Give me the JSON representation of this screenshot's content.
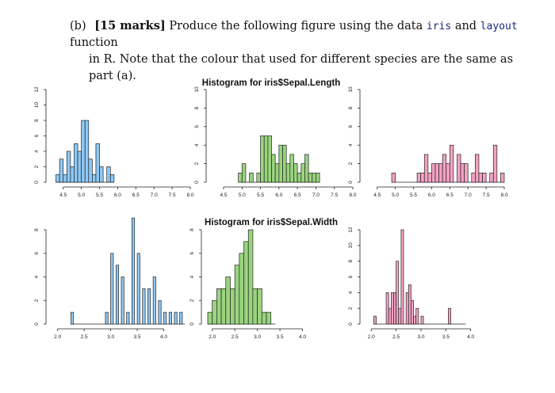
{
  "question": {
    "number": "(b)",
    "marks": "[15 marks]",
    "line1_text": "Produce the following figure using the data",
    "code_iris": "iris",
    "and_text": "and",
    "code_layout": "layout",
    "function_text": "function",
    "line2_text": "in R. Note that the colour that used for different species are the same as part (a)."
  },
  "colors": {
    "setosa": "#8ec9f5",
    "versicolor": "#9ad47f",
    "virginica": "#f4a3c2",
    "stroke": "#222222"
  },
  "chart_data": [
    {
      "type": "bar",
      "title": "",
      "species": "setosa",
      "bin_width": 0.1,
      "bins_start": [
        4.3,
        4.4,
        4.5,
        4.6,
        4.7,
        4.8,
        4.9,
        5.0,
        5.1,
        5.2,
        5.3,
        5.4,
        5.5,
        5.6,
        5.7,
        5.8
      ],
      "counts": [
        1,
        3,
        1,
        4,
        2,
        5,
        4,
        8,
        8,
        3,
        1,
        5,
        2,
        0,
        2,
        1
      ],
      "xlim": [
        4.2,
        8.0
      ],
      "ylim": [
        0,
        12
      ],
      "xticks": [
        "4.5",
        "5.0",
        "5.5",
        "6.0",
        "6.5",
        "7.0",
        "7.5",
        "8.0"
      ],
      "yticks": [
        "0",
        "2",
        "4",
        "6",
        "8",
        "10",
        "12"
      ]
    },
    {
      "type": "bar",
      "title": "Histogram for iris$Sepal.Length",
      "species": "versicolor",
      "bin_width": 0.1,
      "bins_start": [
        4.9,
        5.0,
        5.1,
        5.2,
        5.3,
        5.4,
        5.5,
        5.6,
        5.7,
        5.8,
        5.9,
        6.0,
        6.1,
        6.2,
        6.3,
        6.4,
        6.5,
        6.6,
        6.7,
        6.8,
        6.9,
        7.0
      ],
      "counts": [
        1,
        2,
        0,
        1,
        0,
        1,
        5,
        5,
        5,
        3,
        2,
        4,
        4,
        2,
        3,
        2,
        1,
        2,
        3,
        1,
        1,
        1
      ],
      "xlim": [
        4.2,
        8.0
      ],
      "ylim": [
        0,
        10
      ],
      "xticks": [
        "4.5",
        "5.0",
        "5.5",
        "6.0",
        "6.5",
        "7.0",
        "7.5",
        "8.0"
      ],
      "yticks": [
        "0",
        "2",
        "4",
        "6",
        "8",
        "10"
      ]
    },
    {
      "type": "bar",
      "title": "",
      "species": "virginica",
      "bin_width": 0.1,
      "bins_start": [
        4.9,
        5.0,
        5.1,
        5.2,
        5.3,
        5.4,
        5.5,
        5.6,
        5.7,
        5.8,
        5.9,
        6.0,
        6.1,
        6.2,
        6.3,
        6.4,
        6.5,
        6.6,
        6.7,
        6.8,
        6.9,
        7.0,
        7.1,
        7.2,
        7.3,
        7.4,
        7.5,
        7.6,
        7.7,
        7.8,
        7.9
      ],
      "counts": [
        1,
        0,
        0,
        0,
        0,
        0,
        0,
        1,
        1,
        3,
        1,
        2,
        2,
        2,
        3,
        2,
        4,
        0,
        3,
        2,
        2,
        0,
        1,
        3,
        1,
        1,
        0,
        1,
        4,
        0,
        1
      ],
      "xlim": [
        4.2,
        8.0
      ],
      "ylim": [
        0,
        10
      ],
      "xticks": [
        "4.5",
        "5.0",
        "5.5",
        "6.0",
        "6.5",
        "7.0",
        "7.5",
        "8.0"
      ],
      "yticks": [
        "0",
        "2",
        "4",
        "6",
        "8",
        "10"
      ]
    },
    {
      "type": "bar",
      "title": "",
      "species": "setosa",
      "bin_width": 0.05,
      "bins_start": [
        2.25,
        2.3,
        2.35,
        2.4,
        2.45,
        2.5,
        2.55,
        2.6,
        2.65,
        2.7,
        2.75,
        2.8,
        2.85,
        2.9,
        2.95,
        3.0,
        3.05,
        3.1,
        3.15,
        3.2,
        3.25,
        3.3,
        3.35,
        3.4,
        3.45,
        3.5,
        3.55,
        3.6,
        3.65,
        3.7,
        3.75,
        3.8,
        3.85,
        3.9,
        3.95,
        4.0,
        4.05,
        4.1,
        4.15,
        4.2,
        4.25,
        4.3,
        4.35
      ],
      "counts": [
        1,
        0,
        0,
        0,
        0,
        0,
        0,
        0,
        0,
        0,
        0,
        0,
        0,
        1,
        0,
        6,
        0,
        5,
        0,
        4,
        0,
        1,
        0,
        9,
        0,
        6,
        0,
        3,
        0,
        3,
        0,
        4,
        0,
        2,
        0,
        1,
        0,
        1,
        0,
        1,
        0,
        1,
        0
      ],
      "xlim": [
        1.9,
        4.5
      ],
      "ylim": [
        0,
        8
      ],
      "xticks": [
        "2.0",
        "2.5",
        "3.0",
        "3.5",
        "4.0"
      ],
      "yticks": [
        "0",
        "2",
        "4",
        "6",
        "8"
      ]
    },
    {
      "type": "bar",
      "title": "Histogram for iris$Sepal.Width",
      "species": "versicolor",
      "bin_width": 0.1,
      "bins_start": [
        1.9,
        2.0,
        2.1,
        2.2,
        2.3,
        2.4,
        2.5,
        2.6,
        2.7,
        2.8,
        2.9,
        3.0,
        3.1,
        3.2,
        3.3
      ],
      "counts": [
        1,
        2,
        3,
        3,
        4,
        3,
        5,
        6,
        7,
        8,
        3,
        3,
        1,
        1,
        0
      ],
      "xlim": [
        1.9,
        4.5
      ],
      "ylim": [
        0,
        8
      ],
      "xticks": [
        "2.0",
        "2.5",
        "3.0",
        "3.5",
        "4.0"
      ],
      "yticks": [
        "0",
        "2",
        "4",
        "6",
        "8"
      ]
    },
    {
      "type": "bar",
      "title": "",
      "species": "virginica",
      "bin_width": 0.05,
      "bins_start": [
        2.05,
        2.1,
        2.15,
        2.2,
        2.25,
        2.3,
        2.35,
        2.4,
        2.45,
        2.5,
        2.55,
        2.6,
        2.65,
        2.7,
        2.75,
        2.8,
        2.85,
        2.9,
        2.95,
        3.0,
        3.05,
        3.1,
        3.15,
        3.2,
        3.25,
        3.3,
        3.35,
        3.4,
        3.45,
        3.5,
        3.55,
        3.6,
        3.65,
        3.7,
        3.75,
        3.8,
        3.85
      ],
      "counts": [
        1,
        0,
        0,
        0,
        0,
        4,
        2,
        4,
        4,
        8,
        2,
        12,
        0,
        4,
        5,
        3,
        1,
        2,
        0,
        1,
        0,
        0,
        0,
        0,
        0,
        0,
        0,
        0,
        0,
        0,
        2,
        0,
        0,
        0,
        0,
        0,
        0
      ],
      "xlim": [
        1.9,
        4.5
      ],
      "ylim": [
        0,
        12
      ],
      "xticks": [
        "2.0",
        "2.5",
        "3.0",
        "3.5",
        "4.0"
      ],
      "yticks": [
        "0",
        "2",
        "4",
        "6",
        "8",
        "10",
        "12"
      ]
    }
  ]
}
